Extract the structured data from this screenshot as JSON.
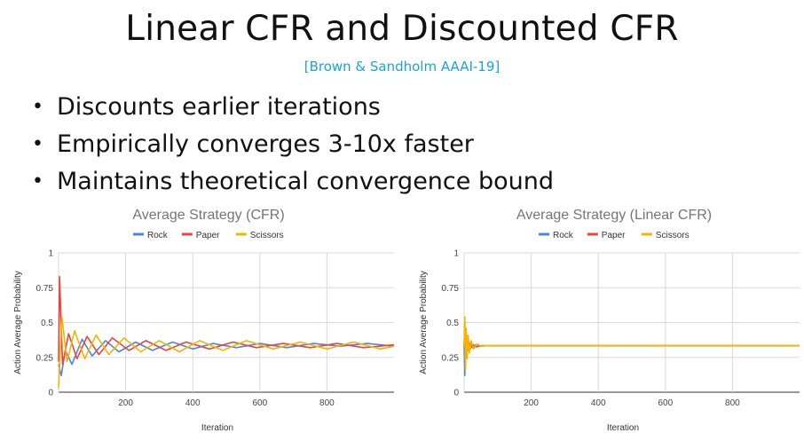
{
  "slide": {
    "title": "Linear CFR and Discounted CFR",
    "citation": "[Brown & Sandholm AAAI-19]",
    "bullets": [
      "Discounts earlier iterations",
      "Empirically converges 3-10x faster",
      "Maintains theoretical convergence bound"
    ]
  },
  "colors": {
    "rock": "#4a86e8",
    "paper": "#e8453c",
    "scissors": "#f4b400"
  },
  "chart_data": [
    {
      "type": "line",
      "title": "Average Strategy (CFR)",
      "xlabel": "Iteration",
      "ylabel": "Action Average Probability",
      "xlim": [
        0,
        1000
      ],
      "ylim": [
        0,
        1
      ],
      "x_ticks": [
        200,
        400,
        600,
        800
      ],
      "y_ticks": [
        0,
        0.25,
        0.5,
        0.75,
        1
      ],
      "y_tick_labels": [
        "0",
        "0.25",
        "0.5",
        "0.75",
        "1"
      ],
      "grid": true,
      "legend": "top-center",
      "series": [
        {
          "name": "Rock",
          "color": "#4a86e8",
          "points": [
            [
              0,
              0.2
            ],
            [
              8,
              0.12
            ],
            [
              20,
              0.3
            ],
            [
              40,
              0.2
            ],
            [
              70,
              0.38
            ],
            [
              100,
              0.26
            ],
            [
              140,
              0.37
            ],
            [
              180,
              0.29
            ],
            [
              230,
              0.36
            ],
            [
              280,
              0.3
            ],
            [
              340,
              0.36
            ],
            [
              400,
              0.31
            ],
            [
              460,
              0.35
            ],
            [
              530,
              0.32
            ],
            [
              600,
              0.35
            ],
            [
              680,
              0.32
            ],
            [
              760,
              0.35
            ],
            [
              840,
              0.33
            ],
            [
              920,
              0.35
            ],
            [
              1000,
              0.33
            ]
          ]
        },
        {
          "name": "Paper",
          "color": "#e8453c",
          "points": [
            [
              0,
              0.22
            ],
            [
              3,
              0.83
            ],
            [
              12,
              0.2
            ],
            [
              30,
              0.42
            ],
            [
              55,
              0.24
            ],
            [
              85,
              0.4
            ],
            [
              120,
              0.27
            ],
            [
              160,
              0.39
            ],
            [
              210,
              0.3
            ],
            [
              260,
              0.37
            ],
            [
              320,
              0.3
            ],
            [
              380,
              0.36
            ],
            [
              450,
              0.31
            ],
            [
              520,
              0.36
            ],
            [
              590,
              0.32
            ],
            [
              670,
              0.35
            ],
            [
              750,
              0.32
            ],
            [
              830,
              0.35
            ],
            [
              910,
              0.32
            ],
            [
              1000,
              0.34
            ]
          ]
        },
        {
          "name": "Scissors",
          "color": "#f4b400",
          "points": [
            [
              0,
              0.03
            ],
            [
              10,
              0.54
            ],
            [
              25,
              0.22
            ],
            [
              48,
              0.44
            ],
            [
              78,
              0.24
            ],
            [
              112,
              0.41
            ],
            [
              150,
              0.27
            ],
            [
              195,
              0.39
            ],
            [
              245,
              0.29
            ],
            [
              300,
              0.37
            ],
            [
              360,
              0.29
            ],
            [
              420,
              0.37
            ],
            [
              490,
              0.3
            ],
            [
              560,
              0.37
            ],
            [
              640,
              0.31
            ],
            [
              720,
              0.36
            ],
            [
              800,
              0.31
            ],
            [
              880,
              0.36
            ],
            [
              960,
              0.31
            ],
            [
              1000,
              0.33
            ]
          ]
        }
      ]
    },
    {
      "type": "line",
      "title": "Average Strategy (Linear CFR)",
      "xlabel": "Iteration",
      "ylabel": "Action Average Probability",
      "xlim": [
        0,
        1000
      ],
      "ylim": [
        0,
        1
      ],
      "x_ticks": [
        200,
        400,
        600,
        800
      ],
      "y_ticks": [
        0,
        0.25,
        0.5,
        0.75,
        1
      ],
      "y_tick_labels": [
        "0",
        "0.25",
        "0.5",
        "0.75",
        "1"
      ],
      "grid": true,
      "legend": "top-center",
      "series": [
        {
          "name": "Rock",
          "color": "#4a86e8",
          "points": [
            [
              0,
              0.33
            ],
            [
              2,
              0.12
            ],
            [
              4,
              0.42
            ],
            [
              6,
              0.25
            ],
            [
              9,
              0.38
            ],
            [
              13,
              0.3
            ],
            [
              18,
              0.35
            ],
            [
              25,
              0.32
            ],
            [
              35,
              0.34
            ],
            [
              50,
              0.333
            ],
            [
              1000,
              0.333
            ]
          ]
        },
        {
          "name": "Paper",
          "color": "#e8453c",
          "points": [
            [
              0,
              0.33
            ],
            [
              2,
              0.5
            ],
            [
              4,
              0.2
            ],
            [
              6,
              0.4
            ],
            [
              9,
              0.28
            ],
            [
              13,
              0.37
            ],
            [
              18,
              0.31
            ],
            [
              25,
              0.345
            ],
            [
              35,
              0.325
            ],
            [
              50,
              0.333
            ],
            [
              1000,
              0.333
            ]
          ]
        },
        {
          "name": "Scissors",
          "color": "#f4b400",
          "points": [
            [
              0,
              0.33
            ],
            [
              2,
              0.54
            ],
            [
              4,
              0.16
            ],
            [
              6,
              0.46
            ],
            [
              9,
              0.24
            ],
            [
              12,
              0.41
            ],
            [
              16,
              0.28
            ],
            [
              21,
              0.37
            ],
            [
              28,
              0.31
            ],
            [
              38,
              0.345
            ],
            [
              52,
              0.33
            ],
            [
              70,
              0.334
            ],
            [
              1000,
              0.334
            ]
          ]
        }
      ]
    }
  ]
}
